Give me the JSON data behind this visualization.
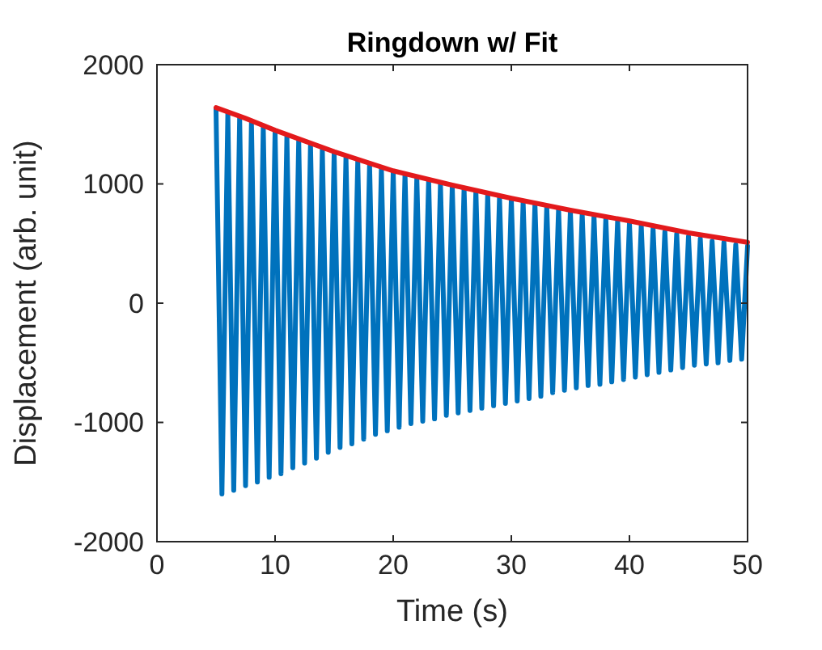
{
  "chart_data": {
    "type": "line",
    "title": "Ringdown w/ Fit",
    "xlabel": "Time (s)",
    "ylabel": "Displacement (arb. unit)",
    "xlim": [
      0,
      50
    ],
    "xticks": [
      0,
      10,
      20,
      30,
      40,
      50
    ],
    "ylim": [
      -2000,
      2000
    ],
    "yticks": [
      -2000,
      -1000,
      0,
      1000,
      2000
    ],
    "grid": false,
    "series": [
      {
        "color": "#0072bd",
        "x": [
          5,
          5.5,
          6,
          6.5,
          7,
          7.5,
          8,
          8.5,
          9,
          9.5,
          10,
          10.5,
          11,
          11.5,
          12,
          12.5,
          13,
          13.5,
          14,
          14.5,
          15,
          15.5,
          16,
          16.5,
          17,
          17.5,
          18,
          18.5,
          19,
          19.5,
          20,
          20.5,
          21,
          21.5,
          22,
          22.5,
          23,
          23.5,
          24,
          24.5,
          25,
          25.5,
          26,
          26.5,
          27,
          27.5,
          28,
          28.5,
          29,
          29.5,
          30,
          30.5,
          31,
          31.5,
          32,
          32.5,
          33,
          33.5,
          34,
          34.5,
          35,
          35.5,
          36,
          36.5,
          37,
          37.5,
          38,
          38.5,
          39,
          39.5,
          40,
          40.5,
          41,
          41.5,
          42,
          42.5,
          43,
          43.5,
          44,
          44.5,
          45,
          45.5,
          46,
          46.5,
          47,
          47.5,
          48,
          48.5,
          49,
          49.5,
          50
        ],
        "values": [
          1630,
          -1600,
          1590,
          -1570,
          1550,
          -1530,
          1510,
          -1500,
          1480,
          -1460,
          1440,
          -1430,
          1400,
          -1380,
          1360,
          -1340,
          1330,
          -1300,
          1290,
          -1250,
          1250,
          -1210,
          1220,
          -1180,
          1190,
          -1140,
          1160,
          -1100,
          1130,
          -1070,
          1100,
          -1040,
          1080,
          -1010,
          1050,
          -990,
          1030,
          -970,
          1000,
          -940,
          980,
          -920,
          960,
          -900,
          940,
          -880,
          910,
          -860,
          890,
          -840,
          870,
          -820,
          850,
          -800,
          830,
          -780,
          810,
          -750,
          790,
          -730,
          770,
          -710,
          750,
          -690,
          730,
          -680,
          710,
          -660,
          690,
          -640,
          670,
          -620,
          650,
          -600,
          630,
          -580,
          600,
          -560,
          580,
          -540,
          560,
          -520,
          540,
          -510,
          520,
          -500,
          510,
          -480,
          490,
          -470,
          480
        ]
      },
      {
        "color": "#e31a1c",
        "x": [
          5,
          7.5,
          10,
          15,
          20,
          25,
          30,
          35,
          40,
          45,
          50
        ],
        "values": [
          1640,
          1550,
          1450,
          1270,
          1110,
          990,
          880,
          780,
          690,
          590,
          510
        ]
      }
    ]
  }
}
